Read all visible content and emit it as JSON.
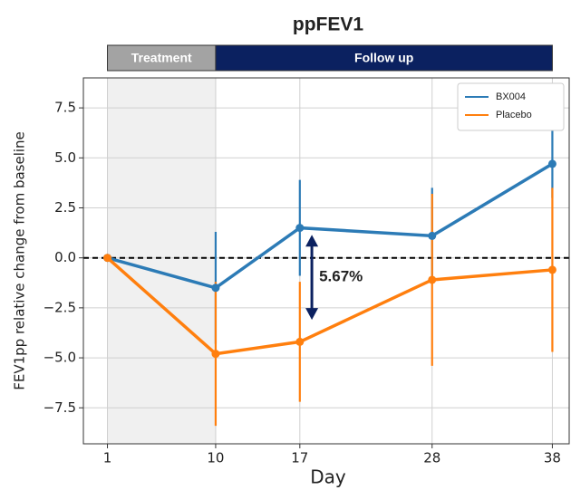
{
  "chart_data": {
    "type": "line",
    "title": "ppFEV1",
    "x_label": "Day",
    "y_label": "FEV1pp relative change from baseline",
    "x": [
      1,
      10,
      17,
      28,
      38
    ],
    "series": [
      {
        "name": "BX004",
        "color": "#2c7bb6",
        "values": [
          0,
          -1.5,
          1.5,
          1.1,
          4.7
        ],
        "errors": [
          0,
          2.8,
          2.4,
          2.4,
          1.7
        ]
      },
      {
        "name": "Placebo",
        "color": "#ff7f0e",
        "values": [
          0,
          -4.8,
          -4.2,
          -1.1,
          -0.6
        ],
        "errors": [
          0,
          3.6,
          3.0,
          4.3,
          4.1
        ]
      }
    ],
    "xlim": [
      -1,
      39.4
    ],
    "ylim": [
      -9.3,
      9.0
    ],
    "xticks": [
      1,
      10,
      17,
      28,
      38
    ],
    "yticks": [
      {
        "value": 7.5,
        "label": "7.5"
      },
      {
        "value": 5,
        "label": "5.0"
      },
      {
        "value": 2.5,
        "label": "2.5"
      },
      {
        "value": 0,
        "label": "0.0"
      },
      {
        "value": -2.5,
        "label": "−2.5"
      },
      {
        "value": -5,
        "label": "−5.0"
      },
      {
        "value": -7.5,
        "label": "−7.5"
      }
    ],
    "grid": true,
    "legend": "upper right",
    "reference_line": 0,
    "shaded_span": [
      1,
      10
    ],
    "phases": [
      {
        "label": "Treatment",
        "start": 1,
        "end": 10,
        "color": "#a3a3a3"
      },
      {
        "label": "Follow up",
        "start": 10,
        "end": 38,
        "color": "#0b2160"
      }
    ],
    "annotation": {
      "text": "5.67%",
      "x": 18,
      "y_from": 1.15,
      "y_to": -3.1,
      "color": "#0b2160"
    }
  }
}
